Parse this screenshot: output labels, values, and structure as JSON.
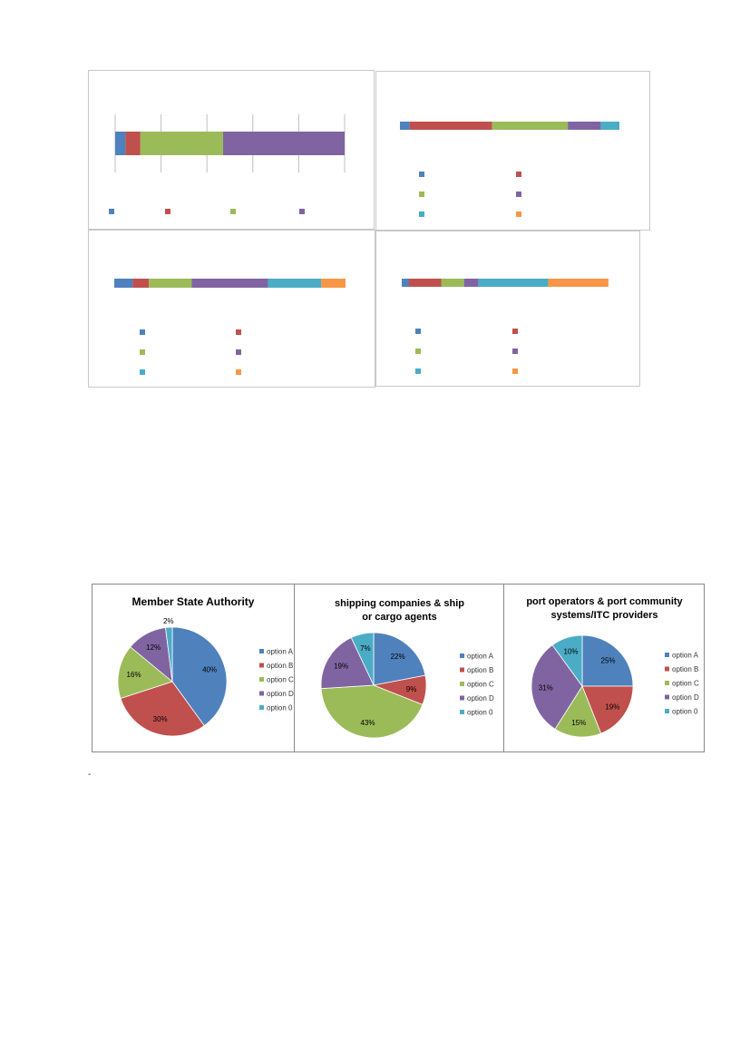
{
  "colors": {
    "option_A": "#4F81BD",
    "option_B": "#C0504D",
    "option_C": "#9BBB59",
    "option_D": "#8064A2",
    "option_0": "#4BACC6",
    "extra": "#F79646",
    "grid": "#bfbfbf"
  },
  "chart_data": [
    {
      "type": "bar",
      "orientation": "stacked-horizontal",
      "grid": true,
      "legend_position": "bottom",
      "segments": [
        4.5,
        6.5,
        36,
        53
      ],
      "segment_colors": [
        "option_A",
        "option_B",
        "option_C",
        "option_D"
      ],
      "xlim": [
        0,
        100
      ]
    },
    {
      "type": "bar",
      "orientation": "stacked-horizontal",
      "grid": false,
      "legend_position": "bottom",
      "segments": [
        4.5,
        37.5,
        34.5,
        15,
        8.5
      ],
      "segment_colors": [
        "option_A",
        "option_B",
        "option_C",
        "option_D",
        "option_0"
      ],
      "legend_colors": [
        "option_A",
        "option_B",
        "option_C",
        "option_D",
        "option_0",
        "extra"
      ],
      "xlim": [
        0,
        100
      ]
    },
    {
      "type": "bar",
      "orientation": "stacked-horizontal",
      "grid": false,
      "legend_position": "bottom",
      "segments": [
        8,
        7,
        18.5,
        33,
        23,
        10.5
      ],
      "segment_colors": [
        "option_A",
        "option_B",
        "option_C",
        "option_D",
        "option_0",
        "extra"
      ],
      "xlim": [
        0,
        100
      ]
    },
    {
      "type": "bar",
      "orientation": "stacked-horizontal",
      "grid": false,
      "legend_position": "bottom",
      "segments": [
        3.5,
        15.5,
        11,
        7,
        33.5,
        29
      ],
      "segment_colors": [
        "option_A",
        "option_B",
        "option_C",
        "option_D",
        "option_0",
        "extra"
      ],
      "xlim": [
        0,
        100
      ]
    },
    {
      "type": "pie",
      "title": "Member State Authority",
      "legend_position": "right",
      "labels": [
        "option A",
        "option B",
        "option C",
        "option D",
        "option 0"
      ],
      "values": [
        40,
        30,
        16,
        12,
        2
      ],
      "data_labels": [
        "40%",
        "30%",
        "16%",
        "12%",
        "2%"
      ]
    },
    {
      "type": "pie",
      "title": "shipping companies & ship or cargo agents",
      "legend_position": "right",
      "labels": [
        "option A",
        "option B",
        "option C",
        "option D",
        "option 0"
      ],
      "values": [
        22,
        9,
        43,
        19,
        7
      ],
      "data_labels": [
        "22%",
        "9%",
        "43%",
        "19%",
        "7%"
      ]
    },
    {
      "type": "pie",
      "title": "port operators & port community systems/ITC providers",
      "legend_position": "right",
      "labels": [
        "option A",
        "option B",
        "option C",
        "option D",
        "option 0"
      ],
      "values": [
        25,
        19,
        15,
        31,
        10
      ],
      "data_labels": [
        "25%",
        "19%",
        "15%",
        "31%",
        "10%"
      ]
    }
  ],
  "footnote_mark": "-"
}
